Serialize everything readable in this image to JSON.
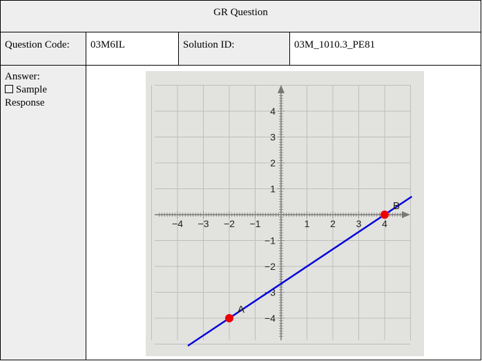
{
  "header": {
    "title": "GR Question"
  },
  "meta": {
    "question_code_label": "Question Code:",
    "question_code_value": "03M6IL",
    "solution_id_label": "Solution ID:",
    "solution_id_value": "03M_1010.3_PE81"
  },
  "answer": {
    "label": "Answer:",
    "checkbox_icon": "empty-checkbox-icon",
    "response_label": "Sample Response"
  },
  "chart_data": {
    "type": "line",
    "xlim": [
      -5,
      5
    ],
    "ylim": [
      -5,
      5
    ],
    "x_ticks": [
      -4,
      -3,
      -2,
      -1,
      1,
      2,
      3,
      4
    ],
    "y_ticks": [
      -4,
      -3,
      -2,
      -1,
      1,
      2,
      3,
      4
    ],
    "x_tick_labels": [
      "−4",
      "−3",
      "−2",
      "−1",
      "1",
      "2",
      "3",
      "4"
    ],
    "y_tick_labels": [
      "−4",
      "−3",
      "−2",
      "−1",
      "1",
      "2",
      "3",
      "4"
    ],
    "grid": true,
    "line": {
      "color": "#0000dd",
      "through": [
        [
          -2,
          -4
        ],
        [
          4,
          0
        ]
      ]
    },
    "points": [
      {
        "label": "A",
        "x": -2,
        "y": -4
      },
      {
        "label": "B",
        "x": 4,
        "y": 0
      }
    ],
    "point_color": "#ee0000",
    "axis_color": "#777777",
    "grid_color": "#bdbdbd"
  }
}
